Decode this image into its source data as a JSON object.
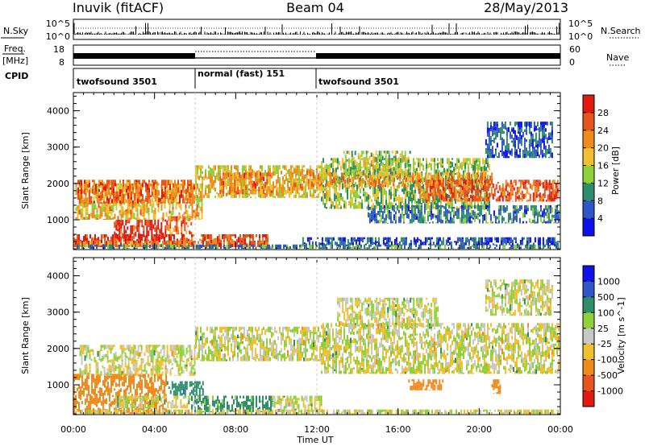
{
  "header": {
    "radar": "Inuvik (fitACF)",
    "beam": "Beam 04",
    "date": "28/May/2013"
  },
  "sky_panel": {
    "left_label": "N.Sky",
    "right_label": "N.Search",
    "left_ticks": [
      "10^5",
      "10^0"
    ],
    "right_ticks": [
      "10^5",
      "10^0"
    ]
  },
  "freq_panel": {
    "left_label_1": "Freq.",
    "left_label_2": "[MHz]",
    "right_label": "Nave",
    "left_ticks": [
      "18",
      "8"
    ],
    "right_ticks": [
      "60",
      "0"
    ]
  },
  "cpid_panel": {
    "label": "CPID",
    "segments": [
      {
        "name": "twofsound 3501",
        "start_ut": 0,
        "end_ut": 6
      },
      {
        "name": "normal (fast) 151",
        "start_ut": 6,
        "end_ut": 12
      },
      {
        "name": "twofsound 3501",
        "start_ut": 12,
        "end_ut": 24
      }
    ]
  },
  "chart_data": [
    {
      "type": "heatmap",
      "title": "",
      "ylabel": "Slant Range [km]",
      "xlabel": "",
      "xlim": [
        0,
        24
      ],
      "ylim": [
        180,
        4500
      ],
      "yticks": [
        1000,
        2000,
        3000,
        4000
      ],
      "colorbar": {
        "label": "Power [dB]",
        "ticks": [
          "4",
          "8",
          "12",
          "16",
          "20",
          "24",
          "28"
        ],
        "colors": [
          "#1010e8",
          "#2f55c8",
          "#2f8e6a",
          "#8ed13a",
          "#f0c030",
          "#f08a1c",
          "#e8541e",
          "#e01a10"
        ],
        "range": [
          0,
          30
        ]
      },
      "bands": [
        {
          "start": 0.0,
          "end": 5.9,
          "r0": 250,
          "r1": 600,
          "v": 26
        },
        {
          "start": 0.0,
          "end": 9.6,
          "r0": 250,
          "r1": 420,
          "v": 22
        },
        {
          "start": 2.0,
          "end": 4.4,
          "r0": 420,
          "r1": 1000,
          "v": 27
        },
        {
          "start": 4.5,
          "end": 5.8,
          "r0": 600,
          "r1": 1100,
          "v": 23
        },
        {
          "start": 6.2,
          "end": 9.6,
          "r0": 250,
          "r1": 600,
          "v": 25
        },
        {
          "start": 0.1,
          "end": 6.3,
          "r0": 1000,
          "r1": 2000,
          "v": 18
        },
        {
          "start": 0.2,
          "end": 6.0,
          "r0": 1450,
          "r1": 2100,
          "v": 23
        },
        {
          "start": 6.0,
          "end": 12.6,
          "r0": 1600,
          "r1": 2500,
          "v": 17
        },
        {
          "start": 7.2,
          "end": 9.8,
          "r0": 1700,
          "r1": 2300,
          "v": 22
        },
        {
          "start": 10.6,
          "end": 12.2,
          "r0": 1800,
          "r1": 2400,
          "v": 20
        },
        {
          "start": 12.2,
          "end": 20.5,
          "r0": 1300,
          "r1": 2700,
          "v": 13
        },
        {
          "start": 12.4,
          "end": 20.6,
          "r0": 1900,
          "r1": 2300,
          "v": 20
        },
        {
          "start": 13.3,
          "end": 16.6,
          "r0": 2200,
          "r1": 2900,
          "v": 14
        },
        {
          "start": 14.5,
          "end": 23.9,
          "r0": 900,
          "r1": 1400,
          "v": 8
        },
        {
          "start": 17.0,
          "end": 23.9,
          "r0": 1500,
          "r1": 2100,
          "v": 24
        },
        {
          "start": 20.3,
          "end": 23.6,
          "r0": 2700,
          "r1": 3700,
          "v": 6
        },
        {
          "start": 0.0,
          "end": 23.9,
          "r0": 200,
          "r1": 320,
          "v": 9
        },
        {
          "start": 11.2,
          "end": 23.9,
          "r0": 300,
          "r1": 520,
          "v": 5
        }
      ]
    },
    {
      "type": "heatmap",
      "title": "",
      "ylabel": "Slant Range [km]",
      "xlabel": "Time UT",
      "xlim": [
        0,
        24
      ],
      "ylim": [
        180,
        4500
      ],
      "yticks": [
        1000,
        2000,
        3000,
        4000
      ],
      "xticks": [
        "00:00",
        "04:00",
        "08:00",
        "12:00",
        "16:00",
        "20:00",
        "00:00"
      ],
      "colorbar": {
        "label": "Velocity [m s^-1]",
        "ticks": [
          "1000",
          "500",
          "100",
          "25",
          "-25",
          "-100",
          "-500",
          "-1000"
        ],
        "colors": [
          "#1010e8",
          "#2f55c8",
          "#2f8e6a",
          "#8ed13a",
          "#c8c8c8",
          "#f0c030",
          "#f08a1c",
          "#e8541e",
          "#e01a10"
        ],
        "range": [
          -1200,
          1200
        ]
      },
      "bands": [
        {
          "start": 0.0,
          "end": 4.6,
          "r0": 200,
          "r1": 1300,
          "v": -300
        },
        {
          "start": 0.3,
          "end": 6.0,
          "r0": 1250,
          "r1": 2100,
          "v": 0
        },
        {
          "start": 2.0,
          "end": 6.0,
          "r0": 350,
          "r1": 700,
          "v": 5
        },
        {
          "start": 5.8,
          "end": 9.8,
          "r0": 250,
          "r1": 700,
          "v": 180
        },
        {
          "start": 4.6,
          "end": 6.4,
          "r0": 700,
          "r1": 1100,
          "v": 400
        },
        {
          "start": 6.0,
          "end": 12.6,
          "r0": 1650,
          "r1": 2600,
          "v": 0
        },
        {
          "start": 9.8,
          "end": 12.2,
          "r0": 250,
          "r1": 700,
          "v": 0
        },
        {
          "start": 12.2,
          "end": 23.9,
          "r0": 1300,
          "r1": 2700,
          "v": 0
        },
        {
          "start": 13.0,
          "end": 18.0,
          "r0": 2600,
          "r1": 3400,
          "v": 0
        },
        {
          "start": 16.5,
          "end": 18.2,
          "r0": 850,
          "r1": 1150,
          "v": -400
        },
        {
          "start": 20.6,
          "end": 21.0,
          "r0": 750,
          "r1": 1150,
          "v": -400
        },
        {
          "start": 20.3,
          "end": 23.6,
          "r0": 2900,
          "r1": 3900,
          "v": 0
        },
        {
          "start": 0.0,
          "end": 23.9,
          "r0": 200,
          "r1": 320,
          "v": 0
        }
      ]
    }
  ]
}
